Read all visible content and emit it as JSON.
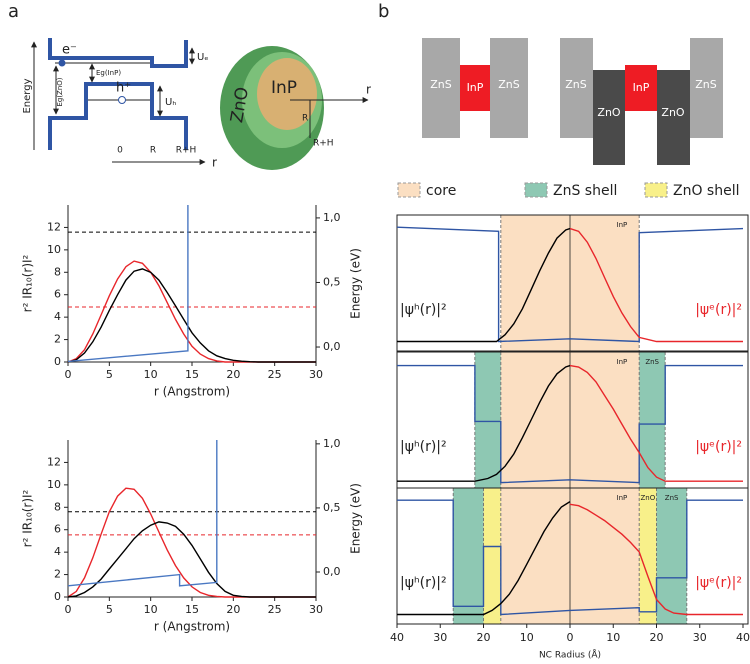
{
  "panel_labels": [
    "a",
    "b"
  ],
  "band_diagram": {
    "energy": "Energy",
    "electron": "e⁻",
    "hole": "h⁺",
    "gap_inp": "Eg(InP)",
    "gap_zno": "Eg(ZnO)",
    "ue": "Uₑ",
    "uh": "Uₕ",
    "r_ticks": [
      "0",
      "R",
      "R+H"
    ],
    "r_axis": "r"
  },
  "sphere": {
    "shell": "ZnO",
    "core": "InP",
    "r_core": "R",
    "r_shell": "R+H",
    "r_axis": "r"
  },
  "shell_diagrams": [
    {
      "layers": [
        "ZnS",
        "InP",
        "ZnS"
      ]
    },
    {
      "layers": [
        "ZnS",
        "ZnO",
        "InP",
        "ZnO",
        "ZnS"
      ]
    }
  ],
  "chart_data": [
    {
      "type": "line",
      "xlabel": "r (Angstrom)",
      "ylabel": "r² IR₁₀(r)I²",
      "y2label": "Energy (eV)",
      "x": [
        0,
        1,
        2,
        3,
        4,
        5,
        6,
        7,
        8,
        9,
        10,
        11,
        12,
        13,
        14,
        15,
        16,
        17,
        18,
        19,
        20,
        21,
        22,
        23,
        24,
        30
      ],
      "xlim": [
        0,
        30
      ],
      "xticks": [
        0,
        5,
        10,
        15,
        20,
        25,
        30
      ],
      "ylim": [
        0,
        14
      ],
      "yticks": [
        0,
        2,
        4,
        6,
        8,
        10,
        12
      ],
      "y2lim": [
        -0.116,
        1.1
      ],
      "y2ticks": [
        {
          "value": 0,
          "label": "0,0"
        },
        {
          "value": 0.5,
          "label": "0,5"
        },
        {
          "value": 1,
          "label": "1,0"
        }
      ],
      "series": [
        {
          "color": "#e8262b",
          "values": [
            0,
            0.3,
            1.1,
            2.5,
            4.2,
            5.9,
            7.4,
            8.5,
            9.0,
            8.8,
            8.0,
            6.8,
            5.3,
            3.8,
            2.5,
            1.4,
            0.7,
            0.3,
            0.1,
            0,
            0,
            0,
            0,
            0,
            0,
            0
          ]
        },
        {
          "color": "#000000",
          "values": [
            0,
            0.2,
            0.8,
            1.8,
            3.1,
            4.6,
            6.0,
            7.3,
            8.1,
            8.3,
            8.0,
            7.3,
            6.2,
            5.0,
            3.8,
            2.6,
            1.7,
            1.0,
            0.55,
            0.3,
            0.15,
            0.07,
            0.03,
            0,
            0,
            0
          ]
        },
        {
          "color": "#4a78c2",
          "x": [
            0,
            14.5,
            14.5
          ],
          "values": [
            0.05,
            1.0,
            14
          ]
        }
      ],
      "levels": [
        {
          "value": 0.89,
          "color": "#000000",
          "axis": "y2"
        },
        {
          "value": 0.31,
          "color": "#e8262b",
          "axis": "y2"
        }
      ]
    },
    {
      "type": "line",
      "xlabel": "r (Angstrom)",
      "ylabel": "r² IR₁₀(r)I²",
      "y2label": "Energy (eV)",
      "x": [
        0,
        1,
        2,
        3,
        4,
        5,
        6,
        7,
        8,
        9,
        10,
        11,
        12,
        13,
        14,
        15,
        16,
        17,
        18,
        19,
        20,
        21,
        22,
        23,
        24,
        30
      ],
      "xlim": [
        0,
        30
      ],
      "xticks": [
        0,
        5,
        10,
        15,
        20,
        25,
        30
      ],
      "ylim": [
        0,
        14
      ],
      "yticks": [
        0,
        2,
        4,
        6,
        8,
        10,
        12
      ],
      "y2lim": [
        -0.195,
        1.03
      ],
      "y2ticks": [
        {
          "value": 0,
          "label": "0,0"
        },
        {
          "value": 0.5,
          "label": "0,5"
        },
        {
          "value": 1,
          "label": "1,0"
        }
      ],
      "series": [
        {
          "color": "#e8262b",
          "values": [
            0,
            0.5,
            1.7,
            3.5,
            5.6,
            7.6,
            9.0,
            9.7,
            9.6,
            8.8,
            7.4,
            5.8,
            4.2,
            2.8,
            1.7,
            0.9,
            0.4,
            0.15,
            0.05,
            0,
            0,
            0,
            0,
            0,
            0,
            0
          ]
        },
        {
          "color": "#000000",
          "values": [
            0,
            0.1,
            0.4,
            0.9,
            1.6,
            2.5,
            3.4,
            4.3,
            5.2,
            5.9,
            6.4,
            6.7,
            6.6,
            6.3,
            5.6,
            4.6,
            3.4,
            2.2,
            1.2,
            0.5,
            0.15,
            0.05,
            0,
            0,
            0,
            0
          ]
        },
        {
          "color": "#4a78c2",
          "x": [
            0,
            13.5,
            13.5,
            18,
            18
          ],
          "values": [
            1.0,
            2.0,
            1.0,
            1.3,
            14
          ]
        }
      ],
      "levels": [
        {
          "value": 0.47,
          "color": "#000000",
          "axis": "y2"
        },
        {
          "value": 0.29,
          "color": "#e8262b",
          "axis": "y2"
        }
      ]
    },
    {
      "type": "wavefunction",
      "xlabel": "NC Radius (Å)",
      "xlim": [
        -40,
        40
      ],
      "xticks": [
        {
          "value": -40,
          "label": "40"
        },
        {
          "value": -30,
          "label": "30"
        },
        {
          "value": -20,
          "label": "20"
        },
        {
          "value": -10,
          "label": "10"
        },
        0,
        10,
        20,
        30,
        40
      ],
      "legend": [
        {
          "name": "core",
          "color": "#fbdfc2"
        },
        {
          "name": "ZnS shell",
          "color": "#8ec8b3"
        },
        {
          "name": "ZnO shell",
          "color": "#f8f08a"
        }
      ],
      "hole_label": "|ψʰ(r)|²",
      "electron_label": "|ψᵉ(r)|²",
      "potential_color": "#2f55a4",
      "hole_color": "#000000",
      "electron_color": "#e8262b",
      "panels": [
        {
          "ylim": [
            0,
            1
          ],
          "shells": [
            {
              "name": "InP",
              "r0": 0,
              "r1": 16,
              "region": 0
            }
          ],
          "potential": {
            "x": [
              -40,
              -16.5,
              -16.5,
              0,
              16,
              16,
              40
            ],
            "values": [
              0.91,
              0.88,
              0.07,
              0.09,
              0.07,
              0.87,
              0.9
            ]
          },
          "hole": {
            "x": [
              -40,
              -17,
              -15,
              -13,
              -11,
              -9,
              -7,
              -5,
              -3,
              -1,
              0
            ],
            "values": [
              0.07,
              0.07,
              0.12,
              0.2,
              0.31,
              0.45,
              0.59,
              0.72,
              0.83,
              0.89,
              0.9
            ]
          },
          "electron": {
            "x": [
              0,
              2,
              4,
              6,
              8,
              10,
              12,
              14,
              16,
              20,
              40
            ],
            "values": [
              0.9,
              0.88,
              0.8,
              0.68,
              0.54,
              0.4,
              0.28,
              0.18,
              0.1,
              0.07,
              0.07
            ]
          }
        },
        {
          "ylim": [
            0,
            1
          ],
          "shells": [
            {
              "name": "InP",
              "r0": 0,
              "r1": 16,
              "region": 0
            },
            {
              "name": "ZnS",
              "r0": 16,
              "r1": 22,
              "region": 1
            }
          ],
          "potential": {
            "x": [
              -40,
              -22,
              -22,
              -16,
              -16,
              0,
              16,
              16,
              22,
              22,
              40
            ],
            "values": [
              0.9,
              0.9,
              0.49,
              0.49,
              0.04,
              0.06,
              0.04,
              0.47,
              0.47,
              0.9,
              0.9
            ]
          },
          "hole": {
            "x": [
              -40,
              -22,
              -19,
              -17,
              -15,
              -13,
              -11,
              -9,
              -7,
              -5,
              -3,
              -1,
              0
            ],
            "values": [
              0.05,
              0.05,
              0.07,
              0.1,
              0.16,
              0.25,
              0.37,
              0.5,
              0.63,
              0.75,
              0.84,
              0.89,
              0.9
            ]
          },
          "electron": {
            "x": [
              0,
              2,
              4,
              6,
              8,
              10,
              12,
              14,
              16,
              18,
              20,
              22,
              40
            ],
            "values": [
              0.9,
              0.89,
              0.85,
              0.78,
              0.68,
              0.58,
              0.47,
              0.36,
              0.26,
              0.15,
              0.08,
              0.05,
              0.05
            ]
          }
        },
        {
          "ylim": [
            0,
            1
          ],
          "shells": [
            {
              "name": "InP",
              "r0": 0,
              "r1": 16,
              "region": 0
            },
            {
              "name": "ZnO",
              "r0": 16,
              "r1": 20,
              "region": 2
            },
            {
              "name": "ZnS",
              "r0": 20,
              "r1": 27,
              "region": 1
            }
          ],
          "potential": {
            "x": [
              -40,
              -27,
              -27,
              -20,
              -20,
              -16,
              -16,
              0,
              16,
              16,
              20,
              20,
              27,
              27,
              40
            ],
            "values": [
              0.91,
              0.91,
              0.13,
              0.13,
              0.57,
              0.57,
              0.07,
              0.1,
              0.12,
              0.09,
              0.09,
              0.34,
              0.34,
              0.91,
              0.91
            ]
          },
          "hole": {
            "x": [
              -40,
              -20,
              -18,
              -16,
              -14,
              -12,
              -10,
              -8,
              -6,
              -4,
              -2,
              0
            ],
            "values": [
              0.07,
              0.07,
              0.1,
              0.15,
              0.22,
              0.32,
              0.44,
              0.56,
              0.68,
              0.78,
              0.86,
              0.9
            ]
          },
          "electron": {
            "x": [
              0,
              2,
              4,
              6,
              8,
              10,
              12,
              14,
              16,
              18,
              20,
              22,
              24,
              27,
              40
            ],
            "values": [
              0.88,
              0.87,
              0.84,
              0.8,
              0.76,
              0.71,
              0.66,
              0.6,
              0.53,
              0.35,
              0.18,
              0.11,
              0.08,
              0.07,
              0.07
            ]
          }
        }
      ]
    }
  ]
}
